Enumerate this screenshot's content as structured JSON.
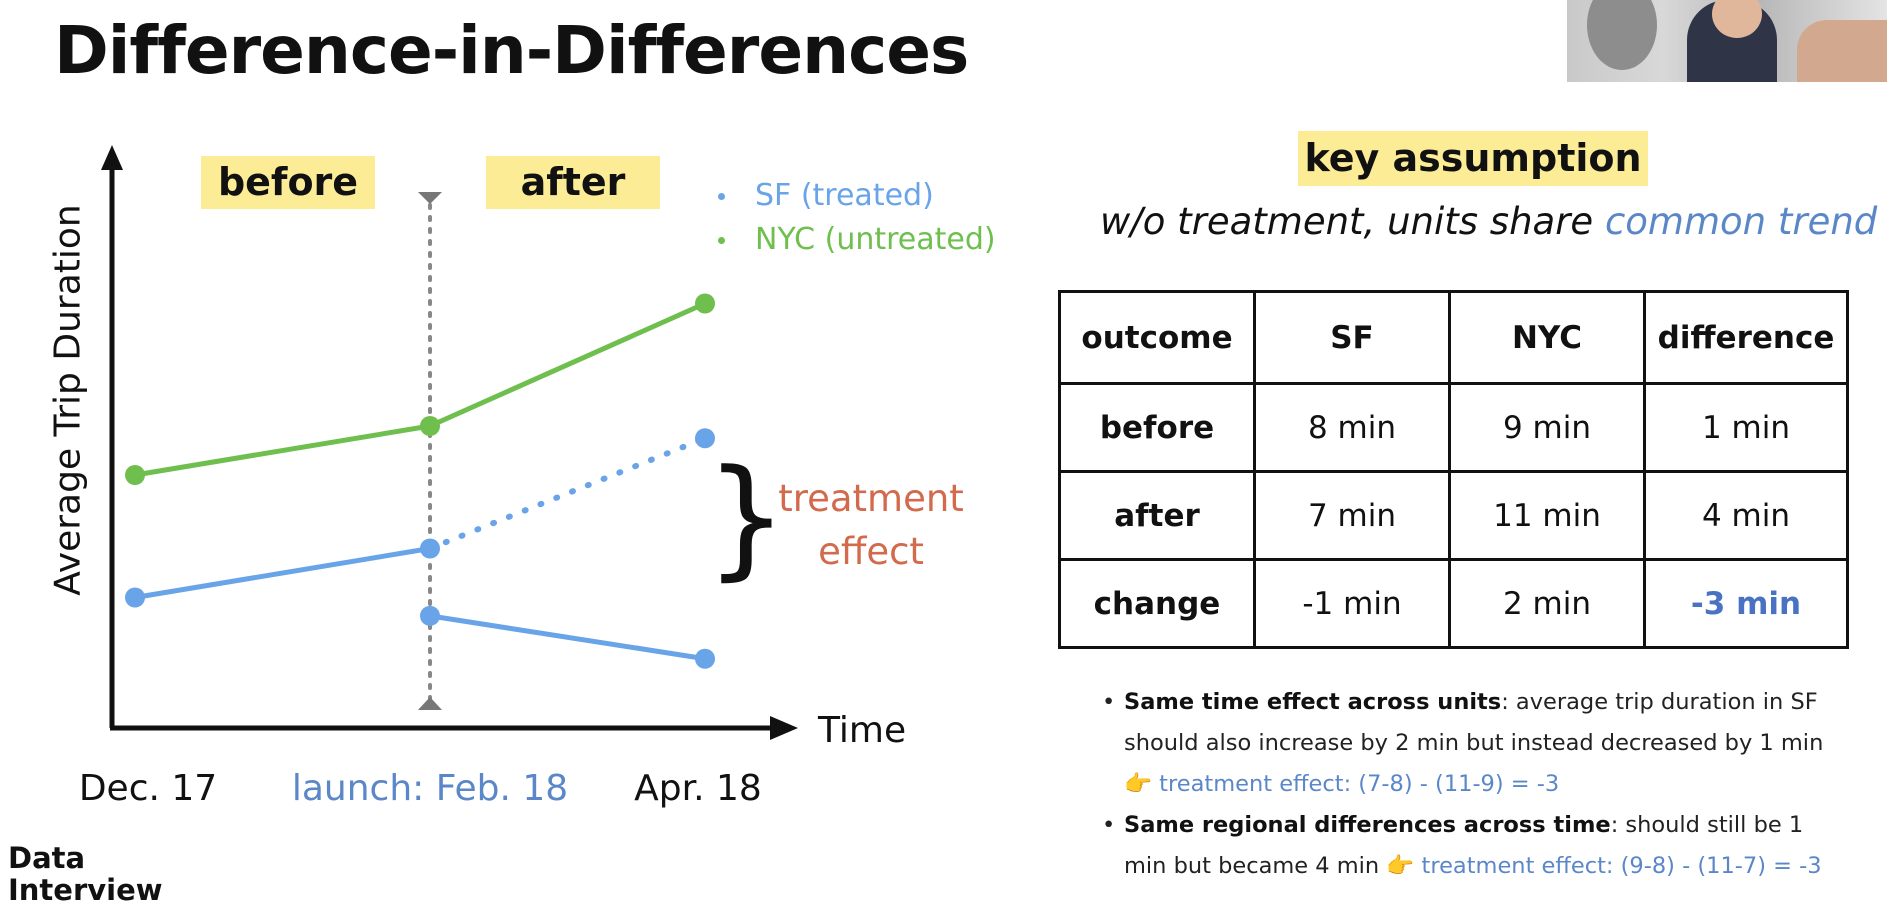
{
  "title": "Difference-in-Differences",
  "phase_tags": {
    "before": "before",
    "after": "after"
  },
  "legend": [
    {
      "label": "SF (treated)",
      "color": "#6aa4e8"
    },
    {
      "label": "NYC (untreated)",
      "color": "#6fbf4e"
    }
  ],
  "chart_data": {
    "type": "line",
    "ylabel": "Average Trip Duration",
    "xlabel": "Time",
    "categories": [
      "Dec. 17",
      "launch: Feb. 18",
      "Apr. 18"
    ],
    "y_numeric_scale": "none (no tick values shown)",
    "series": [
      {
        "name": "NYC (untreated)",
        "color": "#6fbf4e",
        "values": [
          7.0,
          7.8,
          9.8
        ],
        "style": "solid"
      },
      {
        "name": "SF (treated)",
        "color": "#6aa4e8",
        "segment": "pre-launch",
        "values": [
          5.0,
          5.8,
          null
        ],
        "style": "solid"
      },
      {
        "name": "SF (treated)",
        "color": "#6aa4e8",
        "segment": "counterfactual",
        "values": [
          null,
          5.8,
          7.6
        ],
        "style": "dotted"
      },
      {
        "name": "SF (treated)",
        "color": "#6aa4e8",
        "segment": "post-launch",
        "values": [
          null,
          4.7,
          4.0
        ],
        "style": "solid"
      }
    ],
    "launch_marker": "dotted vertical line at launch",
    "annotation": "treatment effect"
  },
  "treatment_effect_label": "treatment effect",
  "key_assumption": {
    "tag": "key assumption",
    "text_prefix": "w/o treatment, units share ",
    "text_highlight": "common trend"
  },
  "table": {
    "headers": [
      "outcome",
      "SF",
      "NYC",
      "difference"
    ],
    "rows": [
      [
        "before",
        "8 min",
        "9 min",
        "1 min"
      ],
      [
        "after",
        "7 min",
        "11 min",
        "4 min"
      ],
      [
        "change",
        "-1 min",
        "2 min",
        "-3 min"
      ]
    ]
  },
  "notes": [
    {
      "bold": "Same time effect across units",
      "text": ": average trip duration in SF should also increase by 2 min but instead decreased by 1 min ",
      "pointer": "👉",
      "blue": " treatment effect: (7-8) - (11-9) = -3"
    },
    {
      "bold": "Same regional differences across time",
      "text": ": should still be 1 min but became 4 min ",
      "pointer": "👉",
      "blue": " treatment effect: (9-8) - (11-7) = -3"
    }
  ],
  "brand": {
    "line1": "Data",
    "line2": "Interview"
  }
}
